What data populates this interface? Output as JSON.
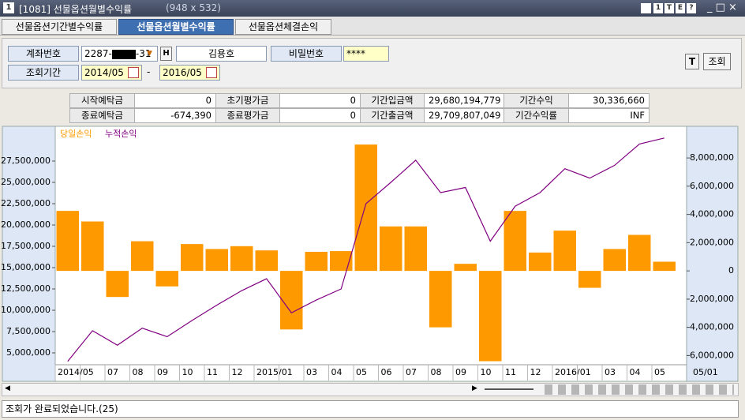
{
  "window": {
    "id": "1",
    "title": "[1081] 선물옵션월별수익률",
    "size": "(948 x 532)",
    "tools": [
      "1",
      "T",
      "E",
      "?"
    ]
  },
  "tabs": [
    "선물옵션기간별수익률",
    "선물옵션월별수익률",
    "선물옵션체결손익"
  ],
  "form": {
    "account_label": "계좌번호",
    "account_prefix": "2287-",
    "account_suffix": "-31",
    "h_button": "H",
    "name": "김용호",
    "password_label": "비밀번호",
    "password": "****",
    "period_label": "조회기간",
    "start": "2014/05",
    "separator": "-",
    "end": "2016/05",
    "t_button": "T",
    "query_button": "조회"
  },
  "summary": {
    "rows": [
      [
        "시작예탁금",
        "0",
        "초기평가금",
        "0",
        "기간입금액",
        "29,680,194,779",
        "기간수익",
        "30,336,660"
      ],
      [
        "종료예탁금",
        "-674,390",
        "종료평가금",
        "0",
        "기간출금액",
        "29,709,807,049",
        "기간수익률",
        "INF"
      ]
    ]
  },
  "chart_data": {
    "type": "combo",
    "categories": [
      "2014/05",
      null,
      "07",
      "08",
      "09",
      "10",
      "11",
      "12",
      "2015/01",
      null,
      "03",
      "04",
      "05",
      "06",
      "07",
      "08",
      "09",
      "10",
      "11",
      "12",
      "2016/01",
      null,
      "03",
      "04",
      "05"
    ],
    "x_end_label": "05/01",
    "series": [
      {
        "name": "당일손익",
        "color": "#ff9900",
        "kind": "bar",
        "axis": "y2",
        "values": [
          4250000,
          3500000,
          -1850000,
          2100000,
          -1100000,
          1900000,
          1550000,
          1750000,
          1450000,
          -4150000,
          1350000,
          1400000,
          8950000,
          3150000,
          3150000,
          -4000000,
          500000,
          -6400000,
          4250000,
          1300000,
          2850000,
          -1200000,
          1550000,
          2550000,
          650000
        ]
      },
      {
        "name": "누적손익",
        "color": "#800080",
        "kind": "line",
        "axis": "y",
        "values": [
          4000000,
          7600000,
          5900000,
          7900000,
          6900000,
          8800000,
          10600000,
          12300000,
          13700000,
          9700000,
          11200000,
          12500000,
          22500000,
          25000000,
          27600000,
          23800000,
          24400000,
          18100000,
          22200000,
          23800000,
          26600000,
          25500000,
          27000000,
          29500000,
          30200000
        ]
      }
    ],
    "ylim": [
      3610000,
      31390000
    ],
    "yticks": [
      {
        "value": 5000000,
        "label": "5,000,000"
      },
      {
        "value": 7500000,
        "label": "7,500,000"
      },
      {
        "value": 10000000,
        "label": "10,000,000"
      },
      {
        "value": 12500000,
        "label": "12,500,000"
      },
      {
        "value": 15000000,
        "label": "15,000,000"
      },
      {
        "value": 17500000,
        "label": "17,500,000"
      },
      {
        "value": 20000000,
        "label": "20,000,000"
      },
      {
        "value": 22500000,
        "label": "22,500,000"
      },
      {
        "value": 25000000,
        "label": "25,000,000"
      },
      {
        "value": 27500000,
        "label": "27,500,000"
      }
    ],
    "y2lim": [
      -6650000,
      10130000
    ],
    "y2ticks": [
      {
        "value": -6000000,
        "label": "-6,000,000"
      },
      {
        "value": -4000000,
        "label": "-4,000,000"
      },
      {
        "value": -2000000,
        "label": "-2,000,000"
      },
      0,
      {
        "value": 2000000,
        "label": "2,000,000"
      },
      {
        "value": 4000000,
        "label": "4,000,000"
      },
      {
        "value": 6000000,
        "label": "6,000,000"
      },
      {
        "value": 8000000,
        "label": "8,000,000"
      }
    ]
  },
  "status": "조회가 완료되었습니다.(25)"
}
